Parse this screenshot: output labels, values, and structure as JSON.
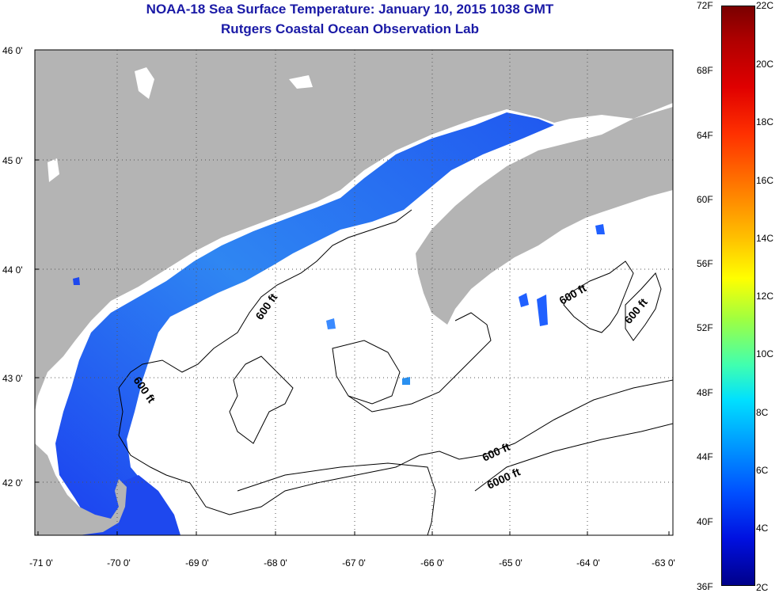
{
  "header": {
    "title_line1": "NOAA-18 Sea Surface Temperature:  January 10, 2015 1038 GMT",
    "title_line2": "Rutgers Coastal Ocean Observation Lab"
  },
  "map": {
    "lat_labels": [
      "46 0'",
      "45 0'",
      "44 0'",
      "43 0'",
      "42 0'"
    ],
    "lon_labels": [
      "-71 0'",
      "-70 0'",
      "-69 0'",
      "-68 0'",
      "-67 0'",
      "-66 0'",
      "-65 0'",
      "-64 0'",
      "-63 0'"
    ],
    "contour_labels": [
      "600 ft",
      "600 ft",
      "600 ft",
      "600 ft",
      "600 ft",
      "6000 ft"
    ],
    "colors": {
      "land": "#b4b4b4",
      "ocean_nodata": "#ffffff",
      "sst_cold": "#1e50ff",
      "sst_mid": "#2a7af0"
    }
  },
  "colorbar": {
    "fahrenheit_labels": [
      "72F",
      "68F",
      "64F",
      "60F",
      "56F",
      "52F",
      "48F",
      "44F",
      "40F",
      "36F"
    ],
    "celsius_labels": [
      "22C",
      "20C",
      "18C",
      "16C",
      "14C",
      "12C",
      "10C",
      "8C",
      "6C",
      "4C",
      "2C"
    ]
  }
}
